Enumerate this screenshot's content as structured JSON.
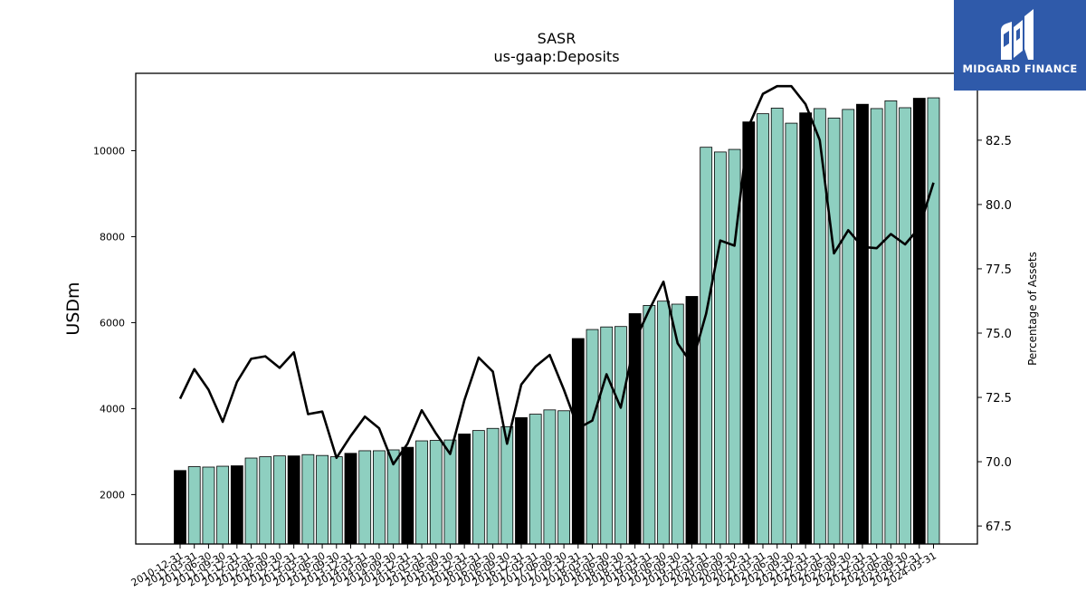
{
  "chart_data": {
    "type": "bar",
    "title": "SASR",
    "subtitle": "us-gaap:Deposits",
    "ylabel": "USDm",
    "y2label": "Percentage of Assets",
    "ylim": [
      850,
      11800
    ],
    "y2lim": [
      66.8,
      85.1
    ],
    "yticks": [
      2000,
      4000,
      6000,
      8000,
      10000
    ],
    "y2ticks": [
      67.5,
      70.0,
      72.5,
      75.0,
      77.5,
      80.0,
      82.5
    ],
    "categories": [
      "2010-12-31",
      "2011-03-31",
      "2011-06-30",
      "2011-09-30",
      "2011-12-31",
      "2012-03-31",
      "2012-06-30",
      "2012-09-30",
      "2012-12-31",
      "2013-03-31",
      "2013-06-30",
      "2013-09-30",
      "2013-12-31",
      "2014-03-31",
      "2014-06-30",
      "2014-09-30",
      "2014-12-31",
      "2015-03-31",
      "2015-06-30",
      "2015-09-30",
      "2015-12-31",
      "2016-03-31",
      "2016-06-30",
      "2016-09-30",
      "2016-12-31",
      "2017-03-31",
      "2017-06-30",
      "2017-09-30",
      "2017-12-31",
      "2018-03-31",
      "2018-06-30",
      "2018-09-30",
      "2018-12-31",
      "2019-03-31",
      "2019-06-30",
      "2019-09-30",
      "2019-12-31",
      "2020-03-31",
      "2020-06-30",
      "2020-09-30",
      "2020-12-31",
      "2021-03-31",
      "2021-06-30",
      "2021-09-30",
      "2021-12-31",
      "2022-03-31",
      "2022-06-30",
      "2022-09-30",
      "2022-12-31",
      "2023-03-31",
      "2023-06-30",
      "2023-09-30",
      "2023-12-31",
      "2024-03-31"
    ],
    "year_end_color": "#000000",
    "bar_color": "#8ecfc0",
    "line_color": "#000000",
    "series": [
      {
        "type": "bar",
        "axis": "left",
        "values": [
          2560,
          2650,
          2640,
          2660,
          2670,
          2850,
          2880,
          2900,
          2900,
          2930,
          2910,
          2880,
          2960,
          3020,
          3020,
          3040,
          3100,
          3250,
          3260,
          3270,
          3410,
          3490,
          3540,
          3580,
          3790,
          3870,
          3970,
          3950,
          5630,
          5840,
          5900,
          5910,
          6210,
          6400,
          6500,
          6430,
          6610,
          10080,
          9970,
          10030,
          10670,
          10860,
          10990,
          10640,
          10880,
          10980,
          10760,
          10960,
          11080,
          10980,
          11160,
          11000,
          11220,
          11230
        ]
      },
      {
        "type": "line",
        "axis": "right",
        "values": [
          72.45,
          73.6,
          72.8,
          71.55,
          73.1,
          74.0,
          74.1,
          73.65,
          74.25,
          71.85,
          71.95,
          70.15,
          71.0,
          71.75,
          71.3,
          69.9,
          70.7,
          72.0,
          71.1,
          70.3,
          72.4,
          74.05,
          73.5,
          70.7,
          73.0,
          73.7,
          74.15,
          72.8,
          71.3,
          71.6,
          73.4,
          72.1,
          74.7,
          75.9,
          77.0,
          74.6,
          73.8,
          75.75,
          78.6,
          78.4,
          83.05,
          84.3,
          84.6,
          84.6,
          83.9,
          82.5,
          78.1,
          79.0,
          78.35,
          78.3,
          78.85,
          78.45,
          79.1,
          80.85
        ]
      }
    ]
  },
  "logo": {
    "text": "MIDGARD FINANCE",
    "icon": "midgard-m-logo-icon"
  }
}
